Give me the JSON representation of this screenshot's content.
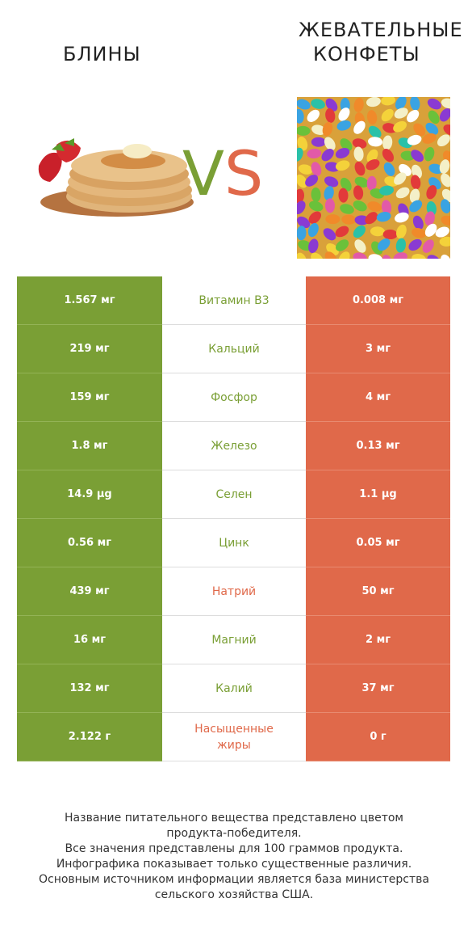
{
  "header": {
    "left_title": "БЛИНЫ",
    "right_title_line1": "ЖЕВАТЕЛЬНЫЕ",
    "right_title_line2": "КОНФЕТЫ",
    "vs_v": "V",
    "vs_s": "S"
  },
  "colors": {
    "winner_left": "#7a9f35",
    "winner_right": "#e0694a"
  },
  "rows": [
    {
      "left": "1.567 мг",
      "label": "Витамин B3",
      "right": "0.008 мг",
      "winner": "left"
    },
    {
      "left": "219 мг",
      "label": "Кальций",
      "right": "3 мг",
      "winner": "left"
    },
    {
      "left": "159 мг",
      "label": "Фосфор",
      "right": "4 мг",
      "winner": "left"
    },
    {
      "left": "1.8 мг",
      "label": "Железо",
      "right": "0.13 мг",
      "winner": "left"
    },
    {
      "left": "14.9 µg",
      "label": "Селен",
      "right": "1.1 µg",
      "winner": "left"
    },
    {
      "left": "0.56 мг",
      "label": "Цинк",
      "right": "0.05 мг",
      "winner": "left"
    },
    {
      "left": "439 мг",
      "label": "Натрий",
      "right": "50 мг",
      "winner": "right"
    },
    {
      "left": "16 мг",
      "label": "Магний",
      "right": "2 мг",
      "winner": "left"
    },
    {
      "left": "132 мг",
      "label": "Калий",
      "right": "37 мг",
      "winner": "left"
    },
    {
      "left": "2.122 г",
      "label": "Насыщенные жиры",
      "right": "0 г",
      "winner": "right"
    }
  ],
  "footer": {
    "line1": "Название питательного вещества представлено цветом",
    "line2": "продукта-победителя.",
    "line3": "Все значения представлены для 100 граммов продукта.",
    "line4": "Инфографика показывает только существенные различия.",
    "line5": "Основным источником информации является база министерства",
    "line6": "сельского хозяйства США."
  }
}
